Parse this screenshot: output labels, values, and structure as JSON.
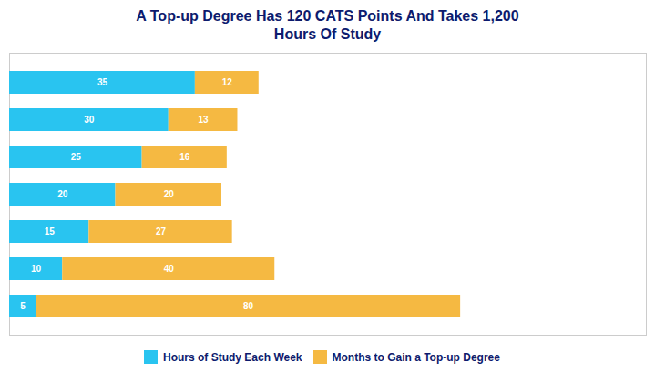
{
  "chart_data": {
    "type": "bar",
    "orientation": "horizontal",
    "stacked": true,
    "title": "A Top-up Degree Has 120 CATS Points And Takes 1,200\nHours Of Study",
    "categories": [
      null,
      null,
      null,
      null,
      null,
      null,
      null
    ],
    "series": [
      {
        "name": "Hours of Study Each Week",
        "color": "#29c4f0",
        "values": [
          35,
          30,
          25,
          20,
          15,
          10,
          5
        ]
      },
      {
        "name": "Months to Gain a Top-up Degree",
        "color": "#f5b942",
        "values": [
          12,
          13,
          16,
          20,
          27,
          40,
          80
        ]
      }
    ],
    "xlim": [
      0,
      120
    ],
    "data_labels": true,
    "tick_labels": false,
    "grid": false,
    "legend": "bottom"
  }
}
